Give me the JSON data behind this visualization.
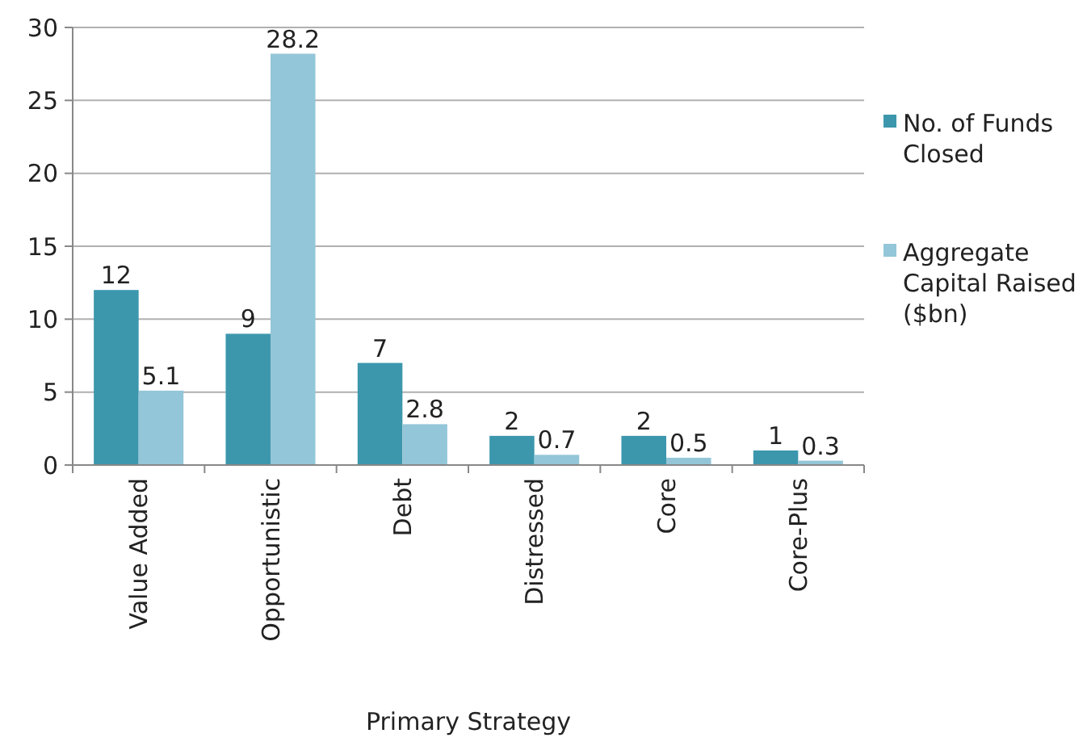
{
  "chart_data": {
    "type": "bar",
    "xlabel": "Primary Strategy",
    "categories": [
      "Value Added",
      "Opportunistic",
      "Debt",
      "Distressed",
      "Core",
      "Core-Plus"
    ],
    "series": [
      {
        "name": "No. of Funds Closed",
        "color": "#3c97ad",
        "values": [
          12,
          9,
          7,
          2,
          2,
          1
        ]
      },
      {
        "name": "Aggregate Capital Raised ($bn)",
        "color": "#93c6d8",
        "values": [
          5.1,
          28.2,
          2.8,
          0.7,
          0.5,
          0.3
        ]
      }
    ],
    "ylim": [
      0,
      30
    ],
    "yticks": [
      0,
      5,
      10,
      15,
      20,
      25,
      30
    ],
    "grid": "y",
    "legend": "right",
    "data_labels": true
  }
}
